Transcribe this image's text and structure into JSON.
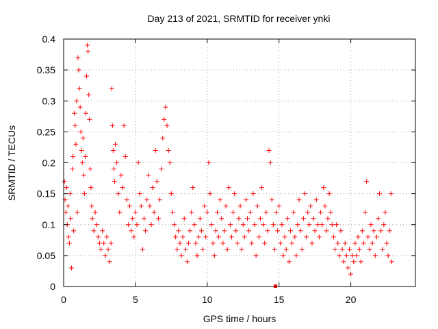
{
  "chart_data": {
    "type": "scatter",
    "title": "Day 213 of 2021, SRMTID for receiver ynki",
    "xlabel": "GPS time / hours",
    "ylabel": "SRMTID / TECUs",
    "xlim": [
      0,
      24.5
    ],
    "ylim": [
      0,
      0.4
    ],
    "x_ticks": [
      0,
      5,
      10,
      15,
      20
    ],
    "x_tick_labels": [
      "0",
      "5",
      "10",
      "15",
      "20"
    ],
    "y_ticks": [
      0,
      0.05,
      0.1,
      0.15,
      0.2,
      0.25,
      0.3,
      0.35,
      0.4
    ],
    "y_tick_labels": [
      "0",
      "0.05",
      "0.1",
      "0.15",
      "0.2",
      "0.25",
      "0.3",
      "0.35",
      "0.4"
    ],
    "grid": true,
    "marker": "plus",
    "color": "#ff0000",
    "series": [
      {
        "name": "SRMTID",
        "points": [
          [
            0.05,
            0.17
          ],
          [
            0.1,
            0.14
          ],
          [
            0.15,
            0.12
          ],
          [
            0.2,
            0.16
          ],
          [
            0.25,
            0.1
          ],
          [
            0.3,
            0.13
          ],
          [
            0.35,
            0.08
          ],
          [
            0.4,
            0.07
          ],
          [
            0.45,
            0.15
          ],
          [
            0.5,
            0.11
          ],
          [
            0.55,
            0.03
          ],
          [
            0.6,
            0.19
          ],
          [
            0.65,
            0.21
          ],
          [
            0.7,
            0.09
          ],
          [
            0.75,
            0.28
          ],
          [
            0.8,
            0.26
          ],
          [
            0.85,
            0.23
          ],
          [
            0.9,
            0.3
          ],
          [
            0.95,
            0.12
          ],
          [
            1.0,
            0.37
          ],
          [
            1.05,
            0.35
          ],
          [
            1.1,
            0.32
          ],
          [
            1.15,
            0.29
          ],
          [
            1.2,
            0.25
          ],
          [
            1.25,
            0.22
          ],
          [
            1.3,
            0.2
          ],
          [
            1.35,
            0.24
          ],
          [
            1.4,
            0.18
          ],
          [
            1.45,
            0.15
          ],
          [
            1.5,
            0.21
          ],
          [
            1.55,
            0.28
          ],
          [
            1.6,
            0.34
          ],
          [
            1.65,
            0.39
          ],
          [
            1.7,
            0.38
          ],
          [
            1.75,
            0.31
          ],
          [
            1.8,
            0.27
          ],
          [
            1.85,
            0.19
          ],
          [
            1.9,
            0.16
          ],
          [
            1.95,
            0.13
          ],
          [
            2.0,
            0.11
          ],
          [
            2.1,
            0.09
          ],
          [
            2.2,
            0.12
          ],
          [
            2.3,
            0.1
          ],
          [
            2.4,
            0.08
          ],
          [
            2.5,
            0.07
          ],
          [
            2.6,
            0.06
          ],
          [
            2.7,
            0.09
          ],
          [
            2.8,
            0.07
          ],
          [
            2.9,
            0.05
          ],
          [
            3.0,
            0.08
          ],
          [
            3.1,
            0.06
          ],
          [
            3.2,
            0.04
          ],
          [
            3.3,
            0.07
          ],
          [
            3.35,
            0.32
          ],
          [
            3.4,
            0.26
          ],
          [
            3.45,
            0.22
          ],
          [
            3.5,
            0.19
          ],
          [
            3.55,
            0.17
          ],
          [
            3.6,
            0.23
          ],
          [
            3.7,
            0.2
          ],
          [
            3.8,
            0.15
          ],
          [
            3.9,
            0.12
          ],
          [
            4.0,
            0.18
          ],
          [
            4.1,
            0.16
          ],
          [
            4.2,
            0.26
          ],
          [
            4.3,
            0.21
          ],
          [
            4.4,
            0.14
          ],
          [
            4.5,
            0.1
          ],
          [
            4.6,
            0.13
          ],
          [
            4.7,
            0.09
          ],
          [
            4.8,
            0.11
          ],
          [
            4.9,
            0.08
          ],
          [
            5.0,
            0.12
          ],
          [
            5.1,
            0.1
          ],
          [
            5.2,
            0.2
          ],
          [
            5.3,
            0.15
          ],
          [
            5.4,
            0.13
          ],
          [
            5.5,
            0.06
          ],
          [
            5.6,
            0.11
          ],
          [
            5.7,
            0.09
          ],
          [
            5.8,
            0.14
          ],
          [
            5.9,
            0.18
          ],
          [
            6.0,
            0.13
          ],
          [
            6.1,
            0.1
          ],
          [
            6.2,
            0.16
          ],
          [
            6.3,
            0.12
          ],
          [
            6.4,
            0.22
          ],
          [
            6.5,
            0.17
          ],
          [
            6.6,
            0.11
          ],
          [
            6.7,
            0.14
          ],
          [
            6.8,
            0.19
          ],
          [
            6.9,
            0.24
          ],
          [
            7.0,
            0.27
          ],
          [
            7.1,
            0.29
          ],
          [
            7.2,
            0.26
          ],
          [
            7.3,
            0.22
          ],
          [
            7.4,
            0.2
          ],
          [
            7.5,
            0.15
          ],
          [
            7.6,
            0.12
          ],
          [
            7.7,
            0.1
          ],
          [
            7.8,
            0.08
          ],
          [
            7.9,
            0.06
          ],
          [
            8.0,
            0.09
          ],
          [
            8.1,
            0.07
          ],
          [
            8.2,
            0.05
          ],
          [
            8.3,
            0.08
          ],
          [
            8.4,
            0.11
          ],
          [
            8.5,
            0.06
          ],
          [
            8.6,
            0.04
          ],
          [
            8.7,
            0.07
          ],
          [
            8.8,
            0.09
          ],
          [
            8.9,
            0.12
          ],
          [
            9.0,
            0.16
          ],
          [
            9.1,
            0.1
          ],
          [
            9.2,
            0.07
          ],
          [
            9.3,
            0.05
          ],
          [
            9.4,
            0.08
          ],
          [
            9.5,
            0.11
          ],
          [
            9.6,
            0.09
          ],
          [
            9.7,
            0.06
          ],
          [
            9.8,
            0.13
          ],
          [
            9.9,
            0.08
          ],
          [
            10.0,
            0.12
          ],
          [
            10.1,
            0.2
          ],
          [
            10.2,
            0.15
          ],
          [
            10.3,
            0.1
          ],
          [
            10.4,
            0.07
          ],
          [
            10.5,
            0.05
          ],
          [
            10.6,
            0.09
          ],
          [
            10.7,
            0.12
          ],
          [
            10.8,
            0.08
          ],
          [
            10.9,
            0.14
          ],
          [
            11.0,
            0.11
          ],
          [
            11.1,
            0.07
          ],
          [
            11.2,
            0.09
          ],
          [
            11.3,
            0.13
          ],
          [
            11.4,
            0.06
          ],
          [
            11.5,
            0.16
          ],
          [
            11.6,
            0.1
          ],
          [
            11.7,
            0.08
          ],
          [
            11.8,
            0.12
          ],
          [
            11.9,
            0.15
          ],
          [
            12.0,
            0.09
          ],
          [
            12.1,
            0.07
          ],
          [
            12.2,
            0.11
          ],
          [
            12.3,
            0.13
          ],
          [
            12.4,
            0.06
          ],
          [
            12.5,
            0.1
          ],
          [
            12.6,
            0.08
          ],
          [
            12.7,
            0.14
          ],
          [
            12.8,
            0.11
          ],
          [
            12.9,
            0.09
          ],
          [
            13.0,
            0.12
          ],
          [
            13.1,
            0.07
          ],
          [
            13.2,
            0.15
          ],
          [
            13.3,
            0.1
          ],
          [
            13.4,
            0.05
          ],
          [
            13.5,
            0.13
          ],
          [
            13.6,
            0.08
          ],
          [
            13.7,
            0.11
          ],
          [
            13.8,
            0.16
          ],
          [
            13.9,
            0.1
          ],
          [
            14.0,
            0.07
          ],
          [
            14.1,
            0.12
          ],
          [
            14.2,
            0.09
          ],
          [
            14.3,
            0.22
          ],
          [
            14.4,
            0.2
          ],
          [
            14.5,
            0.14
          ],
          [
            14.6,
            0.1
          ],
          [
            14.7,
            0.06
          ],
          [
            14.8,
            0.12
          ],
          [
            14.9,
            0.09
          ],
          [
            15.0,
            0.13
          ],
          [
            15.1,
            0.07
          ],
          [
            15.2,
            0.1
          ],
          [
            15.3,
            0.05
          ],
          [
            15.4,
            0.08
          ],
          [
            15.5,
            0.06
          ],
          [
            15.6,
            0.11
          ],
          [
            15.7,
            0.04
          ],
          [
            15.8,
            0.09
          ],
          [
            15.9,
            0.07
          ],
          [
            16.0,
            0.12
          ],
          [
            16.1,
            0.08
          ],
          [
            16.2,
            0.05
          ],
          [
            16.3,
            0.1
          ],
          [
            16.4,
            0.14
          ],
          [
            16.5,
            0.09
          ],
          [
            16.6,
            0.06
          ],
          [
            16.7,
            0.11
          ],
          [
            16.8,
            0.15
          ],
          [
            16.9,
            0.08
          ],
          [
            17.0,
            0.12
          ],
          [
            17.1,
            0.1
          ],
          [
            17.2,
            0.13
          ],
          [
            17.3,
            0.07
          ],
          [
            17.4,
            0.11
          ],
          [
            17.5,
            0.09
          ],
          [
            17.6,
            0.14
          ],
          [
            17.7,
            0.1
          ],
          [
            17.8,
            0.08
          ],
          [
            17.9,
            0.12
          ],
          [
            18.0,
            0.1
          ],
          [
            18.1,
            0.16
          ],
          [
            18.2,
            0.13
          ],
          [
            18.3,
            0.09
          ],
          [
            18.4,
            0.11
          ],
          [
            18.5,
            0.15
          ],
          [
            18.6,
            0.12
          ],
          [
            18.7,
            0.1
          ],
          [
            18.8,
            0.08
          ],
          [
            18.9,
            0.06
          ],
          [
            19.0,
            0.1
          ],
          [
            19.1,
            0.07
          ],
          [
            19.2,
            0.05
          ],
          [
            19.3,
            0.09
          ],
          [
            19.4,
            0.06
          ],
          [
            19.5,
            0.04
          ],
          [
            19.6,
            0.07
          ],
          [
            19.7,
            0.05
          ],
          [
            19.8,
            0.03
          ],
          [
            19.9,
            0.06
          ],
          [
            20.0,
            0.02
          ],
          [
            20.1,
            0.05
          ],
          [
            20.2,
            0.04
          ],
          [
            20.3,
            0.07
          ],
          [
            20.4,
            0.05
          ],
          [
            20.5,
            0.08
          ],
          [
            20.6,
            0.06
          ],
          [
            20.7,
            0.04
          ],
          [
            20.8,
            0.09
          ],
          [
            20.9,
            0.07
          ],
          [
            21.0,
            0.12
          ],
          [
            21.1,
            0.17
          ],
          [
            21.2,
            0.08
          ],
          [
            21.3,
            0.06
          ],
          [
            21.4,
            0.1
          ],
          [
            21.5,
            0.07
          ],
          [
            21.6,
            0.09
          ],
          [
            21.7,
            0.05
          ],
          [
            21.8,
            0.08
          ],
          [
            21.9,
            0.11
          ],
          [
            22.0,
            0.15
          ],
          [
            22.1,
            0.09
          ],
          [
            22.2,
            0.06
          ],
          [
            22.3,
            0.1
          ],
          [
            22.4,
            0.12
          ],
          [
            22.5,
            0.07
          ],
          [
            22.6,
            0.05
          ],
          [
            22.7,
            0.09
          ],
          [
            22.8,
            0.15
          ],
          [
            22.85,
            0.04
          ]
        ]
      }
    ],
    "extra_marker": {
      "x": 14.75,
      "y": 0.0
    }
  }
}
